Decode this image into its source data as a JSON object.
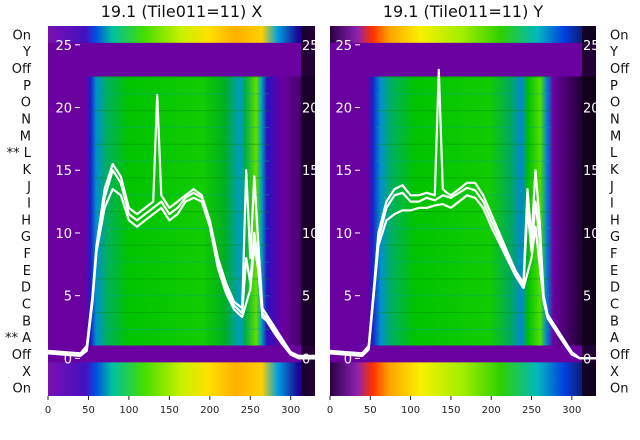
{
  "chart_data": [
    {
      "type": "heatmap",
      "title": "19.1 (Tile011=11) X",
      "xlabel": "",
      "ylabel": "",
      "xlim": [
        0,
        330
      ],
      "xticks": [
        0,
        50,
        100,
        150,
        200,
        250,
        300
      ],
      "ylim": [
        -3,
        26.5
      ],
      "yticks": [
        0,
        5,
        10,
        15,
        20,
        25
      ],
      "row_labels": [
        "On",
        "Y",
        "Off",
        "P",
        "O",
        "N",
        "M",
        "** L",
        "K",
        "J",
        "I",
        "H",
        "G",
        "F",
        "E",
        "D",
        "C",
        "B",
        "** A",
        "Off",
        "X",
        "On"
      ],
      "grid": false,
      "legend": "none",
      "colormap": "nipy_spectral",
      "series": [
        {
          "x": [
            0,
            20,
            40,
            48,
            55,
            60,
            70,
            80,
            90,
            100,
            110,
            120,
            130,
            135,
            140,
            145,
            150,
            160,
            170,
            180,
            190,
            200,
            210,
            220,
            230,
            240,
            245,
            250,
            255,
            260,
            265,
            270,
            280,
            290,
            300,
            310,
            330
          ],
          "y": [
            0.6,
            0.5,
            0.4,
            1.0,
            5.0,
            9.0,
            13.5,
            15.5,
            14.5,
            12.0,
            11.5,
            12.0,
            12.5,
            21.0,
            13.0,
            12.5,
            12.0,
            12.5,
            13.0,
            13.5,
            13.0,
            11.0,
            8.0,
            6.0,
            4.5,
            4.0,
            15.0,
            8.0,
            14.5,
            9.0,
            4.0,
            3.5,
            2.5,
            1.5,
            0.5,
            0.2,
            0.2
          ]
        },
        {
          "x": [
            0,
            20,
            40,
            48,
            55,
            60,
            70,
            80,
            90,
            100,
            110,
            120,
            130,
            140,
            150,
            160,
            170,
            180,
            190,
            200,
            210,
            220,
            230,
            240,
            245,
            250,
            255,
            260,
            265,
            270,
            280,
            290,
            300,
            310,
            330
          ],
          "y": [
            0.5,
            0.4,
            0.3,
            0.8,
            4.8,
            8.8,
            12.8,
            15.0,
            14.0,
            11.5,
            11.0,
            11.5,
            12.0,
            12.5,
            11.5,
            12.0,
            12.8,
            13.2,
            12.8,
            10.8,
            7.6,
            5.6,
            4.2,
            3.6,
            8.0,
            6.0,
            10.0,
            7.5,
            3.6,
            3.2,
            2.2,
            1.3,
            0.4,
            0.1,
            0.1
          ]
        },
        {
          "x": [
            0,
            20,
            40,
            48,
            55,
            60,
            70,
            80,
            90,
            100,
            110,
            120,
            130,
            140,
            150,
            160,
            170,
            180,
            190,
            200,
            210,
            220,
            230,
            240,
            250,
            255,
            260,
            265,
            270,
            280,
            290,
            300,
            310,
            330
          ],
          "y": [
            0.4,
            0.3,
            0.2,
            0.6,
            4.5,
            8.5,
            12.0,
            13.5,
            13.0,
            11.0,
            10.5,
            11.0,
            11.5,
            12.0,
            11.0,
            11.5,
            12.5,
            12.8,
            12.5,
            10.5,
            7.2,
            5.2,
            3.9,
            3.3,
            5.5,
            9.0,
            7.0,
            3.3,
            3.0,
            2.0,
            1.1,
            0.3,
            0.0,
            0.0
          ]
        }
      ]
    },
    {
      "type": "heatmap",
      "title": "19.1 (Tile011=11) Y",
      "xlabel": "",
      "ylabel": "",
      "xlim": [
        0,
        330
      ],
      "xticks": [
        0,
        50,
        100,
        150,
        200,
        250,
        300
      ],
      "ylim": [
        -3,
        26.5
      ],
      "yticks": [
        0,
        5,
        10,
        15,
        20,
        25
      ],
      "row_labels": [
        "On",
        "Y",
        "Off",
        "P",
        "O",
        "N",
        "M",
        "L",
        "K",
        "J",
        "I",
        "H",
        "G",
        "F",
        "E",
        "D",
        "C",
        "B",
        "A",
        "Off",
        "X",
        "On"
      ],
      "grid": false,
      "legend": "none",
      "colormap": "nipy_spectral",
      "series": [
        {
          "x": [
            0,
            20,
            40,
            48,
            55,
            60,
            70,
            80,
            90,
            100,
            110,
            120,
            130,
            135,
            140,
            145,
            150,
            160,
            170,
            180,
            190,
            200,
            210,
            220,
            230,
            240,
            245,
            250,
            255,
            260,
            265,
            270,
            280,
            290,
            300,
            310,
            330
          ],
          "y": [
            0.6,
            0.5,
            0.4,
            1.0,
            6.0,
            10.0,
            12.5,
            13.5,
            13.8,
            13.0,
            13.0,
            13.2,
            13.0,
            23.0,
            13.5,
            13.2,
            13.0,
            13.5,
            14.0,
            14.0,
            13.0,
            11.5,
            10.0,
            8.5,
            7.0,
            6.0,
            13.5,
            9.5,
            15.0,
            11.0,
            5.0,
            3.5,
            2.5,
            1.5,
            0.5,
            0.0,
            0.0
          ]
        },
        {
          "x": [
            0,
            20,
            40,
            48,
            55,
            60,
            70,
            80,
            90,
            100,
            110,
            120,
            130,
            140,
            150,
            160,
            170,
            180,
            190,
            200,
            210,
            220,
            230,
            240,
            245,
            250,
            255,
            260,
            265,
            270,
            280,
            290,
            300,
            310,
            330
          ],
          "y": [
            0.5,
            0.4,
            0.3,
            0.9,
            5.8,
            9.5,
            12.0,
            13.0,
            13.2,
            12.5,
            12.5,
            12.8,
            12.6,
            13.0,
            12.8,
            13.2,
            13.6,
            13.4,
            12.5,
            11.0,
            9.6,
            8.2,
            6.8,
            5.8,
            12.0,
            8.5,
            12.5,
            9.5,
            4.8,
            3.4,
            2.4,
            1.4,
            0.4,
            0.0,
            0.0
          ]
        },
        {
          "x": [
            0,
            20,
            40,
            48,
            55,
            60,
            70,
            80,
            90,
            100,
            110,
            120,
            130,
            140,
            150,
            160,
            170,
            180,
            190,
            200,
            210,
            220,
            230,
            240,
            250,
            255,
            260,
            265,
            270,
            280,
            290,
            300,
            310,
            330
          ],
          "y": [
            0.4,
            0.3,
            0.2,
            0.7,
            5.5,
            9.0,
            11.0,
            11.5,
            11.8,
            11.8,
            12.0,
            12.0,
            12.2,
            12.3,
            12.0,
            12.5,
            13.0,
            12.8,
            12.0,
            10.5,
            9.2,
            7.9,
            6.6,
            5.6,
            8.0,
            10.5,
            7.5,
            4.6,
            3.2,
            2.2,
            1.2,
            0.3,
            0.0,
            0.0
          ]
        }
      ]
    }
  ]
}
